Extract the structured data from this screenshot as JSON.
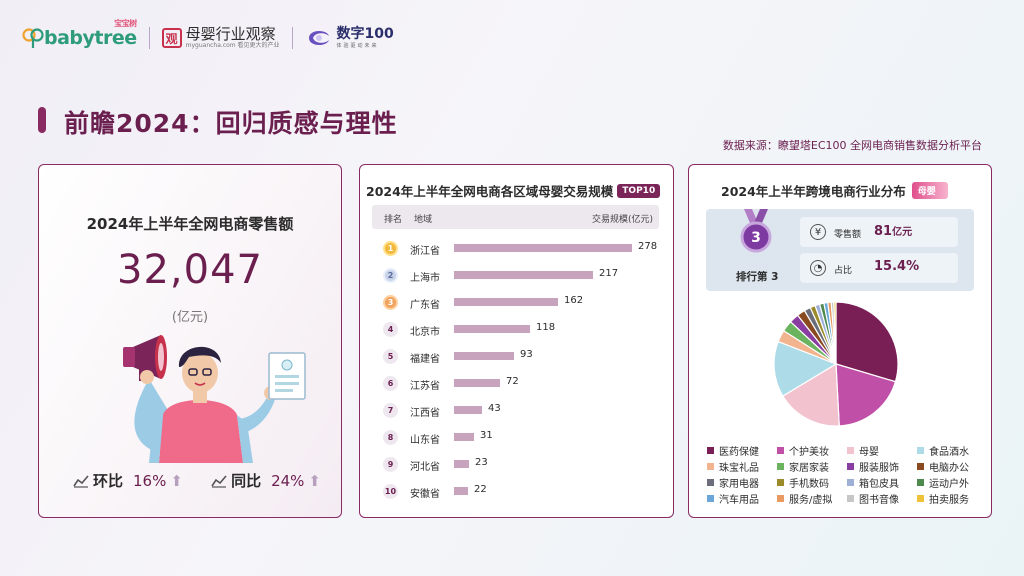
{
  "logos": {
    "babytree": {
      "name": "babytree",
      "cn": "宝宝树"
    },
    "muying": {
      "name": "母婴行业观察",
      "sub": "myguancha.com 看见更大的产业",
      "seal": "观"
    },
    "shuzi": {
      "name": "数字100",
      "sub": "体验驱动未来"
    }
  },
  "page": {
    "title": "前瞻2024：回归质感与理性",
    "source": "数据来源：瞭望塔EC100 全网电商销售数据分析平台"
  },
  "card1": {
    "title": "2024年上半年全网电商零售额",
    "value": "32,047",
    "unit": "(亿元)",
    "mom_label": "环比",
    "mom_value": "16%",
    "yoy_label": "同比",
    "yoy_value": "24%"
  },
  "card2": {
    "title": "2024年上半年全网电商各区域母婴交易规模",
    "badge": "TOP10",
    "header": {
      "rank": "排名",
      "region": "地域",
      "value": "交易规模(亿元)"
    }
  },
  "card3": {
    "title": "2024年上半年跨境电商行业分布",
    "badge": "母婴",
    "rank_number": "3",
    "rank_label": "排行第 3",
    "sales_label": "零售额",
    "sales_value": "81",
    "sales_unit": "亿元",
    "share_label": "占比",
    "share_value": "15.4%"
  },
  "chart_data": [
    {
      "type": "bar",
      "title": "2024年上半年全网电商各区域母婴交易规模",
      "categories": [
        "浙江省",
        "上海市",
        "广东省",
        "北京市",
        "福建省",
        "江苏省",
        "江西省",
        "山东省",
        "河北省",
        "安徽省"
      ],
      "ranks": [
        "1",
        "2",
        "3",
        "4",
        "5",
        "6",
        "7",
        "8",
        "9",
        "10"
      ],
      "values": [
        278,
        217,
        162,
        118,
        93,
        72,
        43,
        31,
        23,
        22
      ],
      "ylabel": "交易规模(亿元)",
      "color": "#c8a3bd"
    },
    {
      "type": "pie",
      "title": "2024年上半年跨境电商行业分布",
      "categories": [
        "医药保健",
        "个护美妆",
        "母婴",
        "食品酒水",
        "珠宝礼品",
        "家居家装",
        "服装服饰",
        "电脑办公",
        "家用电器",
        "手机数码",
        "箱包皮具",
        "运动户外",
        "汽车用品",
        "服务/虚拟",
        "图书音像",
        "拍卖服务"
      ],
      "values": [
        26.5,
        17.5,
        15.4,
        13.0,
        2.8,
        2.6,
        2.2,
        1.9,
        1.5,
        1.2,
        1.1,
        1.0,
        0.9,
        0.8,
        0.6,
        0.5
      ],
      "colors": [
        "#7a1f55",
        "#c04fa8",
        "#f2c3cf",
        "#aedbe8",
        "#f2b48e",
        "#6bb35f",
        "#8a3da0",
        "#8a4a20",
        "#6b6e7a",
        "#9a8a2a",
        "#9fb0d8",
        "#4e8a4e",
        "#6aa6d8",
        "#e89a60",
        "#c7c7c7",
        "#f0c23a"
      ],
      "legend_position": "bottom"
    }
  ]
}
